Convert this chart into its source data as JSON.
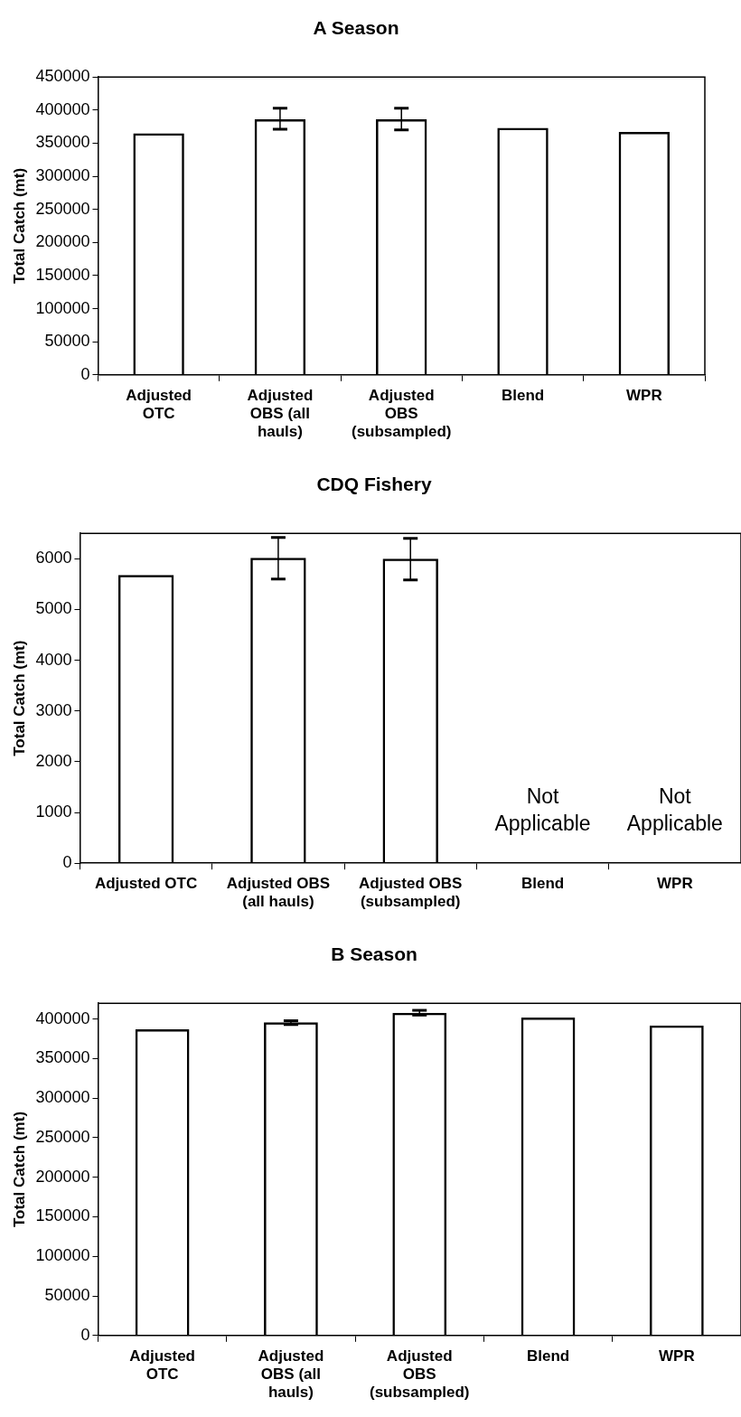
{
  "chart_data": [
    {
      "type": "bar",
      "title": "A Season",
      "ylabel": "Total Catch (mt)",
      "categories": [
        "Adjusted OTC",
        "Adjusted OBS (all hauls)",
        "Adjusted OBS (subsampled)",
        "Blend",
        "WPR"
      ],
      "values": [
        365000,
        386000,
        386000,
        373000,
        367000
      ],
      "errors": [
        null,
        [
          371000,
          403000
        ],
        [
          370000,
          403000
        ],
        null,
        null
      ],
      "color": "#000000",
      "ylim": [
        0,
        450000
      ],
      "yticks": [
        0,
        50000,
        100000,
        150000,
        200000,
        250000,
        300000,
        350000,
        400000,
        450000
      ],
      "grid": false,
      "legend": false
    },
    {
      "type": "bar",
      "title": "CDQ Fishery",
      "ylabel": "Total Catch (mt)",
      "categories": [
        "Adjusted OTC",
        "Adjusted OBS (all hauls)",
        "Adjusted OBS (subsampled)",
        "Blend",
        "WPR"
      ],
      "values": [
        5680,
        6020,
        6000,
        null,
        null
      ],
      "errors": [
        null,
        [
          5600,
          6420
        ],
        [
          5580,
          6400
        ],
        null,
        null
      ],
      "color": "#000000",
      "ylim": [
        0,
        6500
      ],
      "yticks": [
        0,
        1000,
        2000,
        3000,
        4000,
        5000,
        6000
      ],
      "grid": false,
      "legend": false,
      "annotations": [
        "Not Applicable",
        "Not Applicable"
      ]
    },
    {
      "type": "bar",
      "title": "B Season",
      "ylabel": "Total Catch (mt)",
      "categories": [
        "Adjusted OTC",
        "Adjusted OBS (all hauls)",
        "Adjusted OBS (subsampled)",
        "Blend",
        "WPR"
      ],
      "values": [
        387000,
        396000,
        408000,
        402000,
        392000
      ],
      "errors": [
        null,
        [
          393000,
          398000
        ],
        [
          405000,
          411000
        ],
        null,
        null
      ],
      "color": "#000000",
      "ylim": [
        0,
        420000
      ],
      "yticks": [
        0,
        50000,
        100000,
        150000,
        200000,
        250000,
        300000,
        350000,
        400000
      ],
      "grid": false,
      "legend": false
    }
  ]
}
